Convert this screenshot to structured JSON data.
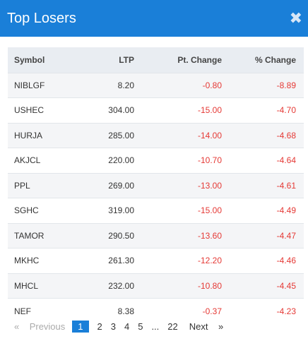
{
  "modal": {
    "title": "Top Losers",
    "close_icon": "close-icon"
  },
  "table": {
    "headers": {
      "symbol": "Symbol",
      "ltp": "LTP",
      "pt_change": "Pt. Change",
      "pct_change": "% Change"
    },
    "rows": [
      {
        "symbol": "NIBLGF",
        "ltp": "8.20",
        "pt_change": "-0.80",
        "pct_change": "-8.89"
      },
      {
        "symbol": "USHEC",
        "ltp": "304.00",
        "pt_change": "-15.00",
        "pct_change": "-4.70"
      },
      {
        "symbol": "HURJA",
        "ltp": "285.00",
        "pt_change": "-14.00",
        "pct_change": "-4.68"
      },
      {
        "symbol": "AKJCL",
        "ltp": "220.00",
        "pt_change": "-10.70",
        "pct_change": "-4.64"
      },
      {
        "symbol": "PPL",
        "ltp": "269.00",
        "pt_change": "-13.00",
        "pct_change": "-4.61"
      },
      {
        "symbol": "SGHC",
        "ltp": "319.00",
        "pt_change": "-15.00",
        "pct_change": "-4.49"
      },
      {
        "symbol": "TAMOR",
        "ltp": "290.50",
        "pt_change": "-13.60",
        "pct_change": "-4.47"
      },
      {
        "symbol": "MKHC",
        "ltp": "261.30",
        "pt_change": "-12.20",
        "pct_change": "-4.46"
      },
      {
        "symbol": "MHCL",
        "ltp": "232.00",
        "pt_change": "-10.80",
        "pct_change": "-4.45"
      },
      {
        "symbol": "NEF",
        "ltp": "8.38",
        "pt_change": "-0.37",
        "pct_change": "-4.23"
      }
    ]
  },
  "pagination": {
    "prev_arrow": "«",
    "prev_label": "Previous",
    "pages": [
      "1",
      "2",
      "3",
      "4",
      "5"
    ],
    "ellipsis": "...",
    "last_page": "22",
    "next_label": "Next",
    "next_arrow": "»",
    "active_page": "1"
  },
  "colors": {
    "header_bg": "#1a7fd8",
    "negative": "#e53935"
  }
}
